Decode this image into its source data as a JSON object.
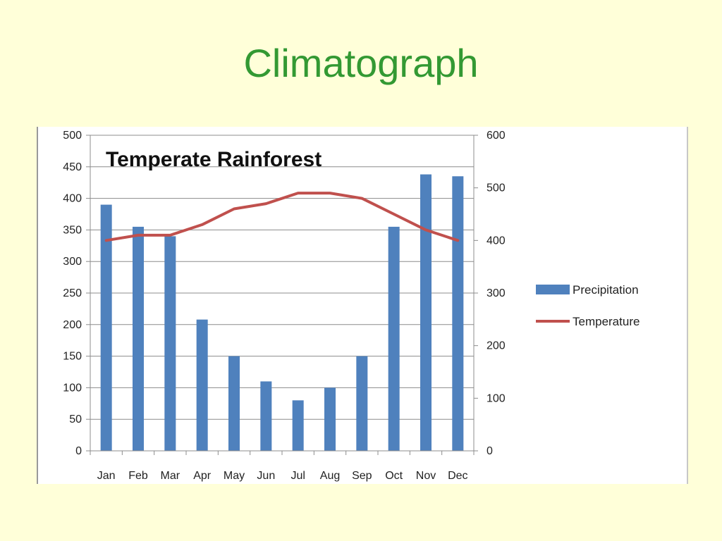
{
  "slide": {
    "title": "Climatograph"
  },
  "chart_data": {
    "type": "bar",
    "title": "Temperate Rainforest",
    "categories": [
      "Jan",
      "Feb",
      "Mar",
      "Apr",
      "May",
      "Jun",
      "Jul",
      "Aug",
      "Sep",
      "Oct",
      "Nov",
      "Dec"
    ],
    "series": [
      {
        "name": "Precipitation",
        "type": "bar",
        "axis": "left",
        "color": "#4f81bd",
        "values": [
          390,
          355,
          340,
          208,
          150,
          110,
          80,
          100,
          150,
          355,
          438,
          435
        ]
      },
      {
        "name": "Temperature",
        "type": "line",
        "axis": "right",
        "color": "#c0504d",
        "values": [
          400,
          410,
          410,
          430,
          460,
          470,
          490,
          490,
          480,
          450,
          420,
          400
        ]
      }
    ],
    "y_left": {
      "ylim": [
        0,
        500
      ],
      "ticks": [
        "0",
        "50",
        "100",
        "150",
        "200",
        "250",
        "300",
        "350",
        "400",
        "450",
        "500"
      ]
    },
    "y_right": {
      "ylim": [
        0,
        600
      ],
      "ticks": [
        "0",
        "100",
        "200",
        "300",
        "400",
        "500",
        "600"
      ]
    },
    "grid": true,
    "legend_position": "right"
  }
}
